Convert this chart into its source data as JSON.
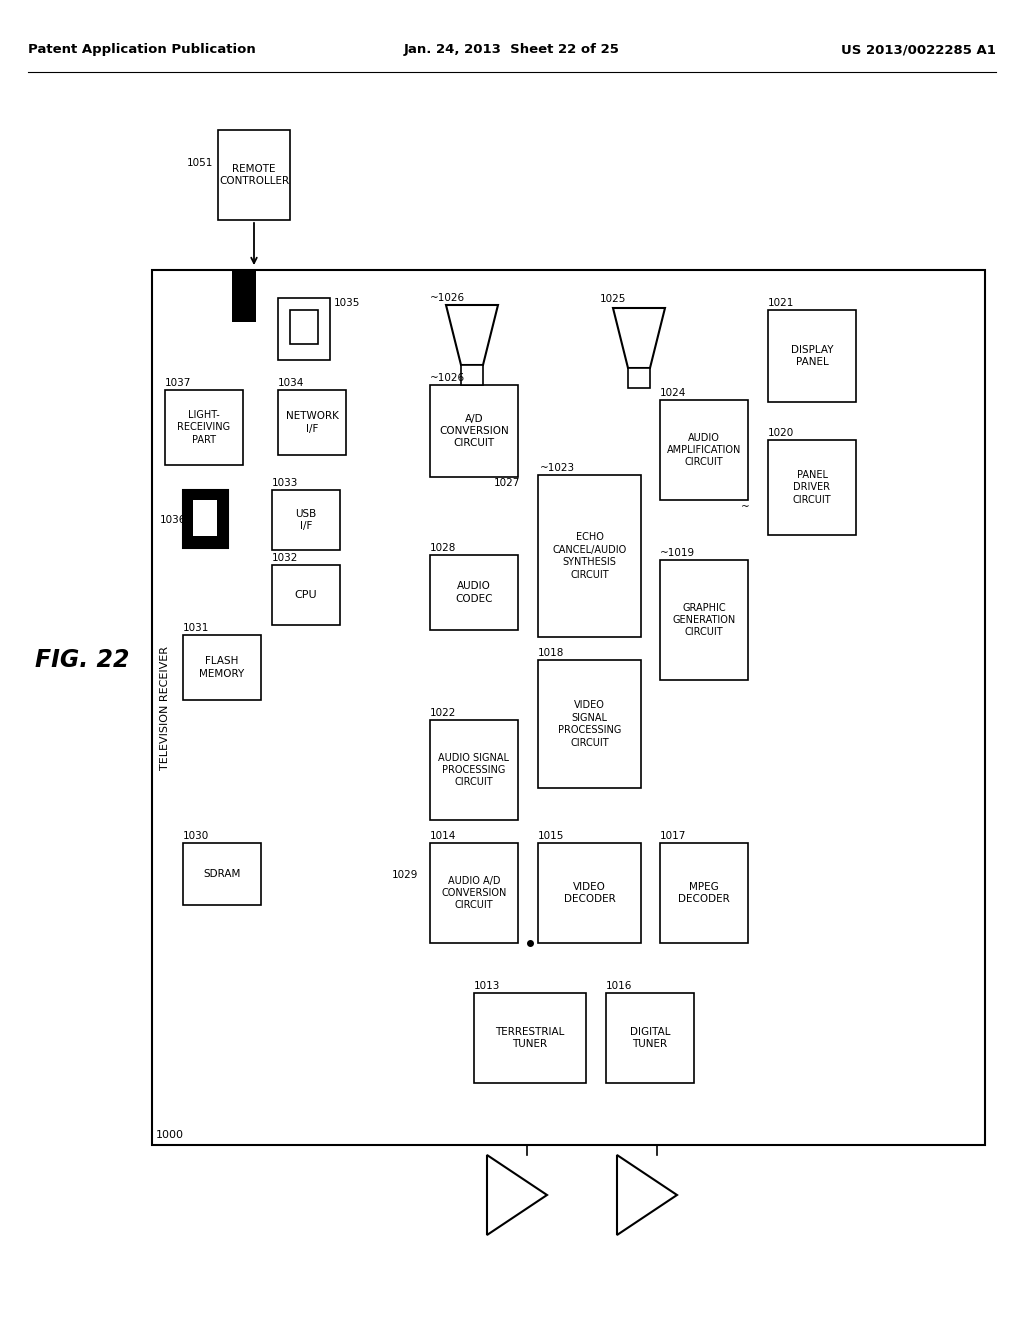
{
  "header_left": "Patent Application Publication",
  "header_center": "Jan. 24, 2013  Sheet 22 of 25",
  "header_right": "US 2013/0022285 A1",
  "fig_label": "FIG. 22",
  "bg_color": "#ffffff",
  "line_color": "#000000",
  "text_color": "#000000"
}
